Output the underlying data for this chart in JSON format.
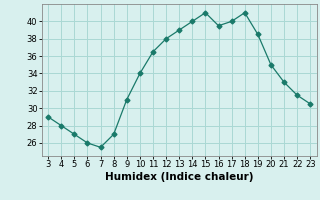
{
  "x": [
    3,
    4,
    5,
    6,
    7,
    8,
    9,
    10,
    11,
    12,
    13,
    14,
    15,
    16,
    17,
    18,
    19,
    20,
    21,
    22,
    23
  ],
  "y": [
    29,
    28,
    27,
    26,
    25.5,
    27,
    31,
    34,
    36.5,
    38,
    39,
    40,
    41,
    39.5,
    40,
    41,
    38.5,
    35,
    33,
    31.5,
    30.5
  ],
  "line_color": "#1a7a6a",
  "marker": "D",
  "marker_size": 2.5,
  "bg_color": "#d8f0ee",
  "grid_color": "#aad8d4",
  "xlabel": "Humidex (Indice chaleur)",
  "xlim": [
    2.5,
    23.5
  ],
  "ylim": [
    24.5,
    42
  ],
  "yticks": [
    26,
    28,
    30,
    32,
    34,
    36,
    38,
    40
  ],
  "xticks": [
    3,
    4,
    5,
    6,
    7,
    8,
    9,
    10,
    11,
    12,
    13,
    14,
    15,
    16,
    17,
    18,
    19,
    20,
    21,
    22,
    23
  ],
  "tick_fontsize": 6,
  "xlabel_fontsize": 7.5
}
